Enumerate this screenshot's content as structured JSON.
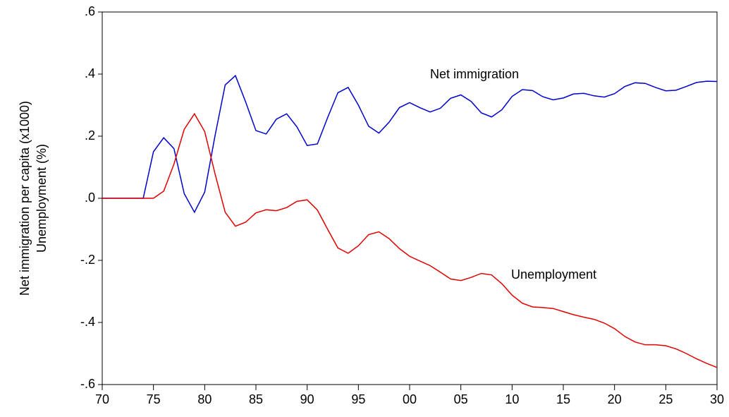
{
  "chart_data": {
    "type": "line",
    "ylabel": [
      "Net immigration per capita (x1000)",
      "Unemployment (%)"
    ],
    "x": [
      1970,
      1971,
      1972,
      1973,
      1974,
      1975,
      1976,
      1977,
      1978,
      1979,
      1980,
      1981,
      1982,
      1983,
      1984,
      1985,
      1986,
      1987,
      1988,
      1989,
      1990,
      1991,
      1992,
      1993,
      1994,
      1995,
      1996,
      1997,
      1998,
      1999,
      2000,
      2001,
      2002,
      2003,
      2004,
      2005,
      2006,
      2007,
      2008,
      2009,
      2010,
      2011,
      2012,
      2013,
      2014,
      2015,
      2016,
      2017,
      2018,
      2019,
      2020,
      2021,
      2022,
      2023,
      2024,
      2025,
      2026,
      2027,
      2028,
      2029,
      2030
    ],
    "series": [
      {
        "name": "Net immigration",
        "color": "#0000cc",
        "values": [
          0,
          0,
          0,
          0,
          0,
          0.15,
          0.195,
          0.16,
          0.015,
          -0.045,
          0.02,
          0.2,
          0.365,
          0.395,
          0.31,
          0.218,
          0.207,
          0.255,
          0.272,
          0.23,
          0.17,
          0.175,
          0.26,
          0.34,
          0.357,
          0.3,
          0.232,
          0.21,
          0.245,
          0.292,
          0.308,
          0.292,
          0.278,
          0.29,
          0.322,
          0.333,
          0.312,
          0.275,
          0.262,
          0.285,
          0.328,
          0.35,
          0.347,
          0.327,
          0.317,
          0.323,
          0.336,
          0.338,
          0.33,
          0.326,
          0.337,
          0.36,
          0.372,
          0.37,
          0.357,
          0.346,
          0.348,
          0.36,
          0.373,
          0.377,
          0.376
        ]
      },
      {
        "name": "Unemployment",
        "color": "#e00000",
        "values": [
          0,
          0,
          0,
          0,
          0,
          0,
          0.023,
          0.11,
          0.222,
          0.272,
          0.215,
          0.08,
          -0.045,
          -0.09,
          -0.077,
          -0.047,
          -0.037,
          -0.04,
          -0.03,
          -0.01,
          -0.005,
          -0.038,
          -0.1,
          -0.16,
          -0.177,
          -0.153,
          -0.117,
          -0.108,
          -0.13,
          -0.162,
          -0.187,
          -0.202,
          -0.217,
          -0.238,
          -0.26,
          -0.265,
          -0.255,
          -0.242,
          -0.247,
          -0.275,
          -0.312,
          -0.338,
          -0.35,
          -0.352,
          -0.355,
          -0.365,
          -0.375,
          -0.383,
          -0.39,
          -0.402,
          -0.42,
          -0.445,
          -0.463,
          -0.472,
          -0.472,
          -0.475,
          -0.485,
          -0.5,
          -0.517,
          -0.532,
          -0.545
        ]
      }
    ],
    "xlim": [
      1970,
      2030
    ],
    "xticks": [
      {
        "value": 1970,
        "label": "70"
      },
      {
        "value": 1975,
        "label": "75"
      },
      {
        "value": 1980,
        "label": "80"
      },
      {
        "value": 1985,
        "label": "85"
      },
      {
        "value": 1990,
        "label": "90"
      },
      {
        "value": 1995,
        "label": "95"
      },
      {
        "value": 2000,
        "label": "00"
      },
      {
        "value": 2005,
        "label": "05"
      },
      {
        "value": 2010,
        "label": "10"
      },
      {
        "value": 2015,
        "label": "15"
      },
      {
        "value": 2020,
        "label": "20"
      },
      {
        "value": 2025,
        "label": "25"
      },
      {
        "value": 2030,
        "label": "30"
      }
    ],
    "ylim": [
      -0.6,
      0.6
    ],
    "yticks": [
      {
        "value": -0.6,
        "label": "-.6"
      },
      {
        "value": -0.4,
        "label": "-.4"
      },
      {
        "value": -0.2,
        "label": "-.2"
      },
      {
        "value": 0,
        "label": ".0"
      },
      {
        "value": 0.2,
        "label": ".2"
      },
      {
        "value": 0.4,
        "label": ".4"
      },
      {
        "value": 0.6,
        "label": ".6"
      }
    ],
    "grid": false
  }
}
